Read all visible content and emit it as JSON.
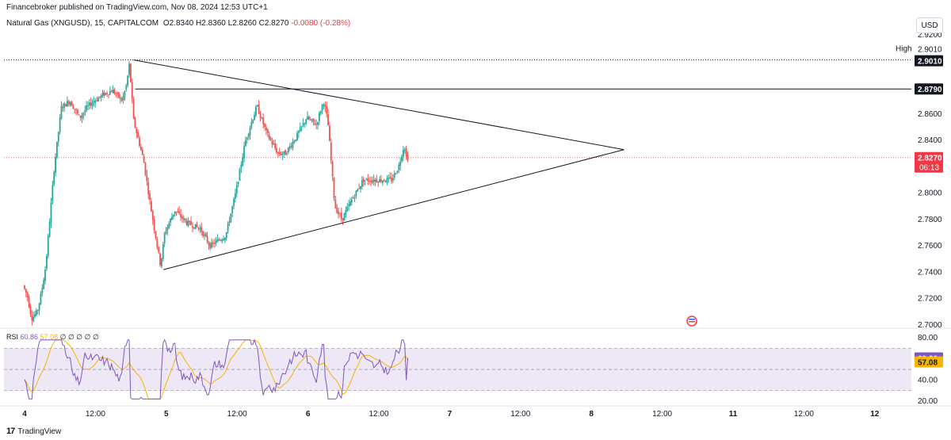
{
  "header": {
    "publisher_text": "Financebroker published on TradingView.com, Nov 08, 2024 12:53 UTC+1"
  },
  "legend": {
    "symbol": "Natural Gas (XNGUSD), 15, CAPITALCOM",
    "open_label": "O",
    "open": "2.8340",
    "high_label": "H",
    "high": "2.8360",
    "low_label": "L",
    "low": "2.8260",
    "close_label": "C",
    "close": "2.8270",
    "change": "-0.0080 (-0.28%)"
  },
  "currency_button": "USD",
  "price_axis": {
    "ticks": [
      "2.9200",
      "2.9000",
      "2.8600",
      "2.8400",
      "2.8000",
      "2.7800",
      "2.7600",
      "2.7400",
      "2.7200",
      "2.7000"
    ]
  },
  "labels": {
    "high_label": "High",
    "high_value": "2.9010",
    "high_badge": "2.9010",
    "resistance_badge": "2.8790",
    "last_price": "2.8270",
    "countdown": "06:13"
  },
  "rsi": {
    "label": "RSI",
    "value": "60.86",
    "ma_value": "57.08",
    "extra": "∅ ∅ ∅ ∅ ∅",
    "axis_ticks": [
      "80.00",
      "40.00",
      "20.00"
    ],
    "value_badge": "60.86",
    "ma_badge": "57.08"
  },
  "time_axis": {
    "labels": [
      "4",
      "12:00",
      "5",
      "12:00",
      "6",
      "12:00",
      "7",
      "12:00",
      "8",
      "12:00",
      "11",
      "12:00",
      "12"
    ]
  },
  "footer": {
    "logo": "17",
    "brand": "TradingView"
  },
  "colors": {
    "up": "#26a69a",
    "down": "#ef5350",
    "rsi": "#7e57c2",
    "rsi_ma": "#f7b500",
    "rsi_band": "#ede7f6",
    "last_price": "#f23645"
  },
  "chart_data": [
    {
      "type": "candlestick",
      "title": "Natural Gas (XNGUSD), 15, CAPITALCOM",
      "x": [
        "4",
        "12:00",
        "5",
        "12:00",
        "6",
        "12:00",
        "7",
        "12:00",
        "8",
        "12:00",
        "11",
        "12:00",
        "12"
      ],
      "ylim": [
        2.698,
        2.926
      ],
      "y_ticks": [
        2.92,
        2.9,
        2.86,
        2.84,
        2.8,
        2.78,
        2.76,
        2.74,
        2.72,
        2.7
      ],
      "price_path": [
        [
          0,
          2.73
        ],
        [
          0.03,
          2.722
        ],
        [
          0.06,
          2.705
        ],
        [
          0.1,
          2.71
        ],
        [
          0.13,
          2.725
        ],
        [
          0.16,
          2.745
        ],
        [
          0.22,
          2.82
        ],
        [
          0.27,
          2.865
        ],
        [
          0.33,
          2.87
        ],
        [
          0.4,
          2.857
        ],
        [
          0.45,
          2.865
        ],
        [
          0.5,
          2.87
        ],
        [
          0.57,
          2.875
        ],
        [
          0.63,
          2.878
        ],
        [
          0.7,
          2.87
        ],
        [
          0.73,
          2.882
        ],
        [
          0.75,
          2.898
        ],
        [
          0.78,
          2.855
        ],
        [
          0.85,
          2.825
        ],
        [
          0.9,
          2.79
        ],
        [
          0.97,
          2.745
        ],
        [
          1.0,
          2.77
        ],
        [
          1.07,
          2.787
        ],
        [
          1.15,
          2.778
        ],
        [
          1.25,
          2.773
        ],
        [
          1.32,
          2.76
        ],
        [
          1.43,
          2.768
        ],
        [
          1.5,
          2.8
        ],
        [
          1.57,
          2.84
        ],
        [
          1.65,
          2.866
        ],
        [
          1.72,
          2.845
        ],
        [
          1.8,
          2.83
        ],
        [
          1.85,
          2.83
        ],
        [
          1.93,
          2.843
        ],
        [
          2.0,
          2.857
        ],
        [
          2.07,
          2.852
        ],
        [
          2.12,
          2.87
        ],
        [
          2.15,
          2.855
        ],
        [
          2.2,
          2.79
        ],
        [
          2.25,
          2.78
        ],
        [
          2.32,
          2.795
        ],
        [
          2.4,
          2.81
        ],
        [
          2.5,
          2.81
        ],
        [
          2.6,
          2.81
        ],
        [
          2.65,
          2.82
        ],
        [
          2.69,
          2.837
        ],
        [
          2.705,
          2.827
        ]
      ],
      "high_line": 2.901,
      "resistance_line": 2.879,
      "last_price": 2.827,
      "triangle_upper": [
        [
          0.77,
          2.901
        ],
        [
          4.23,
          2.833
        ]
      ],
      "triangle_lower": [
        [
          0.98,
          2.742
        ],
        [
          4.23,
          2.833
        ]
      ]
    },
    {
      "type": "line",
      "title": "RSI",
      "ylim": [
        20,
        80
      ],
      "y_ticks": [
        80,
        40,
        20
      ],
      "band": [
        30,
        70
      ],
      "series": [
        {
          "name": "RSI",
          "value": 60.86
        },
        {
          "name": "MA",
          "value": 57.08
        }
      ]
    }
  ]
}
